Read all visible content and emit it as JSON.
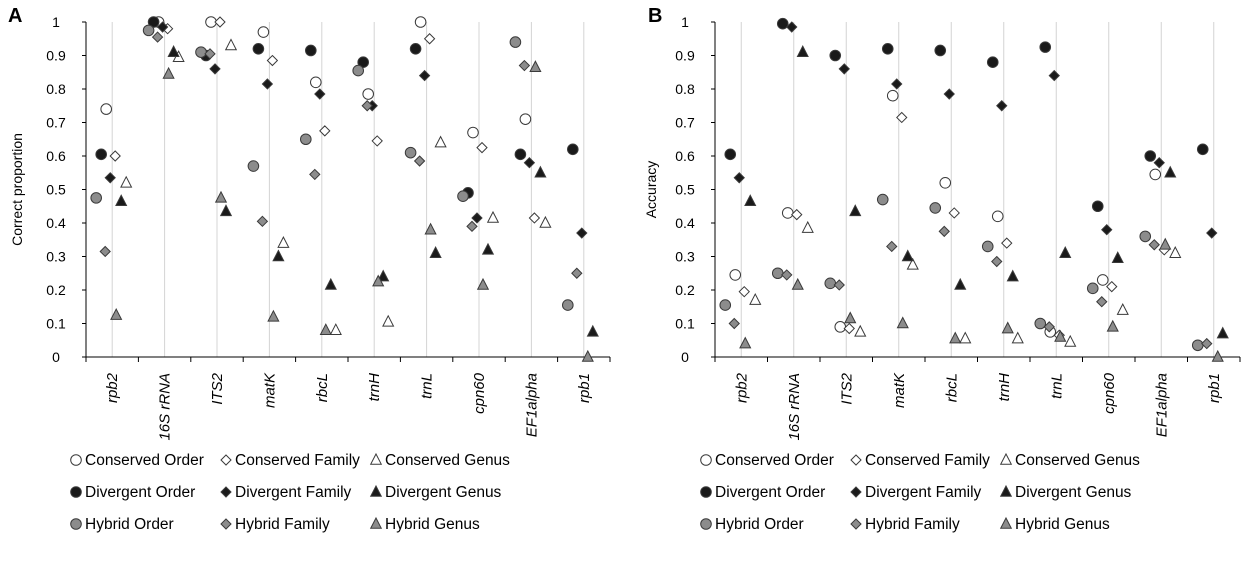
{
  "figure": {
    "legend_items": [
      "Conserved Order",
      "Conserved Family",
      "Conserved Genus",
      "Divergent Order",
      "Divergent Family",
      "Divergent Genus",
      "Hybrid Order",
      "Hybrid Family",
      "Hybrid Genus"
    ]
  },
  "chart_data": [
    {
      "type": "scatter",
      "panel_label": "A",
      "title": "",
      "xlabel": "",
      "ylabel": "Correct proportion",
      "ylim": [
        0,
        1
      ],
      "yticks": [
        "0",
        "0.1",
        "0.2",
        "0.3",
        "0.4",
        "0.5",
        "0.6",
        "0.7",
        "0.8",
        "0.9",
        "1"
      ],
      "grid": true,
      "legend_position": "bottom",
      "categories": [
        "rpb2",
        "16S rRNA",
        "ITS2",
        "matK",
        "rbcL",
        "trnH",
        "trnL",
        "cpn60",
        "EF1alpha",
        "rpb1"
      ],
      "series": [
        {
          "name": "Conserved Order",
          "marker": "circle",
          "fill": "#ffffff",
          "values": [
            0.74,
            1.0,
            1.0,
            0.97,
            0.82,
            0.785,
            1.0,
            0.67,
            0.71,
            null
          ]
        },
        {
          "name": "Conserved Family",
          "marker": "diamond",
          "fill": "#ffffff",
          "values": [
            0.6,
            0.98,
            1.0,
            0.885,
            0.675,
            0.645,
            0.95,
            0.625,
            0.415,
            null
          ]
        },
        {
          "name": "Conserved Genus",
          "marker": "triangle",
          "fill": "#ffffff",
          "values": [
            0.52,
            0.895,
            0.93,
            0.34,
            0.08,
            0.105,
            0.64,
            0.415,
            0.4,
            null
          ]
        },
        {
          "name": "Divergent Order",
          "marker": "circle",
          "fill": "#1a1a1a",
          "values": [
            0.605,
            1.0,
            0.9,
            0.92,
            0.915,
            0.88,
            0.92,
            0.49,
            0.605,
            0.62
          ]
        },
        {
          "name": "Divergent Family",
          "marker": "diamond",
          "fill": "#1a1a1a",
          "values": [
            0.535,
            0.985,
            0.86,
            0.815,
            0.785,
            0.75,
            0.84,
            0.415,
            0.58,
            0.37
          ]
        },
        {
          "name": "Divergent Genus",
          "marker": "triangle",
          "fill": "#1a1a1a",
          "values": [
            0.465,
            0.91,
            0.435,
            0.3,
            0.215,
            0.24,
            0.31,
            0.32,
            0.55,
            0.075
          ]
        },
        {
          "name": "Hybrid Order",
          "marker": "circle",
          "fill": "#8c8c8c",
          "values": [
            0.475,
            0.975,
            0.91,
            0.57,
            0.65,
            0.855,
            0.61,
            0.48,
            0.94,
            0.155
          ]
        },
        {
          "name": "Hybrid Family",
          "marker": "diamond",
          "fill": "#8c8c8c",
          "values": [
            0.315,
            0.955,
            0.905,
            0.405,
            0.545,
            0.75,
            0.585,
            0.39,
            0.87,
            0.25
          ]
        },
        {
          "name": "Hybrid Genus",
          "marker": "triangle",
          "fill": "#8c8c8c",
          "values": [
            0.125,
            0.845,
            0.475,
            0.12,
            0.08,
            0.225,
            0.38,
            0.215,
            0.865,
            0.0
          ]
        }
      ]
    },
    {
      "type": "scatter",
      "panel_label": "B",
      "title": "",
      "xlabel": "",
      "ylabel": "Accuracy",
      "ylim": [
        0,
        1
      ],
      "yticks": [
        "0",
        "0.1",
        "0.2",
        "0.3",
        "0.4",
        "0.5",
        "0.6",
        "0.7",
        "0.8",
        "0.9",
        "1"
      ],
      "grid": true,
      "legend_position": "bottom",
      "categories": [
        "rpb2",
        "16S rRNA",
        "ITS2",
        "matK",
        "rbcL",
        "trnH",
        "trnL",
        "cpn60",
        "EF1alpha",
        "rpb1"
      ],
      "series": [
        {
          "name": "Conserved Order",
          "marker": "circle",
          "fill": "#ffffff",
          "values": [
            0.245,
            0.43,
            0.09,
            0.78,
            0.52,
            0.42,
            0.075,
            0.23,
            0.545,
            null
          ]
        },
        {
          "name": "Conserved Family",
          "marker": "diamond",
          "fill": "#ffffff",
          "values": [
            0.195,
            0.425,
            0.085,
            0.715,
            0.43,
            0.34,
            0.065,
            0.21,
            0.32,
            null
          ]
        },
        {
          "name": "Conserved Genus",
          "marker": "triangle",
          "fill": "#ffffff",
          "values": [
            0.17,
            0.385,
            0.075,
            0.275,
            0.055,
            0.055,
            0.045,
            0.14,
            0.31,
            null
          ]
        },
        {
          "name": "Divergent Order",
          "marker": "circle",
          "fill": "#1a1a1a",
          "values": [
            0.605,
            0.995,
            0.9,
            0.92,
            0.915,
            0.88,
            0.925,
            0.45,
            0.6,
            0.62
          ]
        },
        {
          "name": "Divergent Family",
          "marker": "diamond",
          "fill": "#1a1a1a",
          "values": [
            0.535,
            0.985,
            0.86,
            0.815,
            0.785,
            0.75,
            0.84,
            0.38,
            0.58,
            0.37
          ]
        },
        {
          "name": "Divergent Genus",
          "marker": "triangle",
          "fill": "#1a1a1a",
          "values": [
            0.465,
            0.91,
            0.435,
            0.3,
            0.215,
            0.24,
            0.31,
            0.295,
            0.55,
            0.07
          ]
        },
        {
          "name": "Hybrid Order",
          "marker": "circle",
          "fill": "#8c8c8c",
          "values": [
            0.155,
            0.25,
            0.22,
            0.47,
            0.445,
            0.33,
            0.1,
            0.205,
            0.36,
            0.035
          ]
        },
        {
          "name": "Hybrid Family",
          "marker": "diamond",
          "fill": "#8c8c8c",
          "values": [
            0.1,
            0.245,
            0.215,
            0.33,
            0.375,
            0.285,
            0.09,
            0.165,
            0.335,
            0.04
          ]
        },
        {
          "name": "Hybrid Genus",
          "marker": "triangle",
          "fill": "#8c8c8c",
          "values": [
            0.04,
            0.215,
            0.115,
            0.1,
            0.055,
            0.085,
            0.06,
            0.09,
            0.335,
            0.0
          ]
        }
      ]
    }
  ]
}
